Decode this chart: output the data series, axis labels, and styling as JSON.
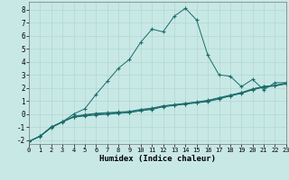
{
  "xlabel": "Humidex (Indice chaleur)",
  "bg_color": "#c8e8e5",
  "grid_color": "#add4cf",
  "line_color": "#1a6b6b",
  "xlim": [
    0,
    23
  ],
  "ylim": [
    -2.3,
    8.6
  ],
  "yticks": [
    -2,
    -1,
    0,
    1,
    2,
    3,
    4,
    5,
    6,
    7,
    8
  ],
  "xticks": [
    0,
    1,
    2,
    3,
    4,
    5,
    6,
    7,
    8,
    9,
    10,
    11,
    12,
    13,
    14,
    15,
    16,
    17,
    18,
    19,
    20,
    21,
    22,
    23
  ],
  "flat1_x": [
    0,
    1,
    2,
    3,
    4,
    5,
    6,
    7,
    8,
    9,
    10,
    11,
    12,
    13,
    14,
    15,
    16,
    17,
    18,
    19,
    20,
    21,
    22,
    23
  ],
  "flat1_y": [
    -2.1,
    -1.7,
    -1.0,
    -0.6,
    -0.2,
    -0.1,
    0.0,
    0.05,
    0.1,
    0.15,
    0.3,
    0.4,
    0.6,
    0.7,
    0.8,
    0.9,
    1.0,
    1.2,
    1.4,
    1.6,
    1.9,
    2.1,
    2.2,
    2.35
  ],
  "flat2_x": [
    0,
    1,
    2,
    3,
    4,
    5,
    6,
    7,
    8,
    9,
    10,
    11,
    12,
    13,
    14,
    15,
    16,
    17,
    18,
    19,
    20,
    21,
    22,
    23
  ],
  "flat2_y": [
    -2.1,
    -1.7,
    -1.0,
    -0.6,
    -0.25,
    -0.15,
    -0.08,
    -0.02,
    0.05,
    0.1,
    0.25,
    0.35,
    0.55,
    0.65,
    0.75,
    0.85,
    0.95,
    1.15,
    1.38,
    1.58,
    1.85,
    2.05,
    2.15,
    2.3
  ],
  "flat3_x": [
    0,
    1,
    2,
    3,
    4,
    5,
    6,
    7,
    8,
    9,
    10,
    11,
    12,
    13,
    14,
    15,
    16,
    17,
    18,
    19,
    20,
    21,
    22,
    23
  ],
  "flat3_y": [
    -2.1,
    -1.72,
    -1.05,
    -0.62,
    -0.18,
    -0.05,
    0.05,
    0.1,
    0.15,
    0.2,
    0.35,
    0.45,
    0.62,
    0.72,
    0.82,
    0.92,
    1.05,
    1.25,
    1.45,
    1.65,
    1.92,
    2.12,
    2.18,
    2.38
  ],
  "peak_x": [
    0,
    1,
    2,
    3,
    4,
    5,
    6,
    7,
    8,
    9,
    10,
    11,
    12,
    13,
    14,
    15,
    16,
    17,
    18,
    19,
    20,
    21,
    22,
    23
  ],
  "peak_y": [
    -2.1,
    -1.7,
    -1.0,
    -0.6,
    0.0,
    0.4,
    1.5,
    2.5,
    3.5,
    4.2,
    5.5,
    6.5,
    6.3,
    7.5,
    8.1,
    7.2,
    4.5,
    3.0,
    2.9,
    2.1,
    2.65,
    1.85,
    2.4,
    2.4
  ]
}
